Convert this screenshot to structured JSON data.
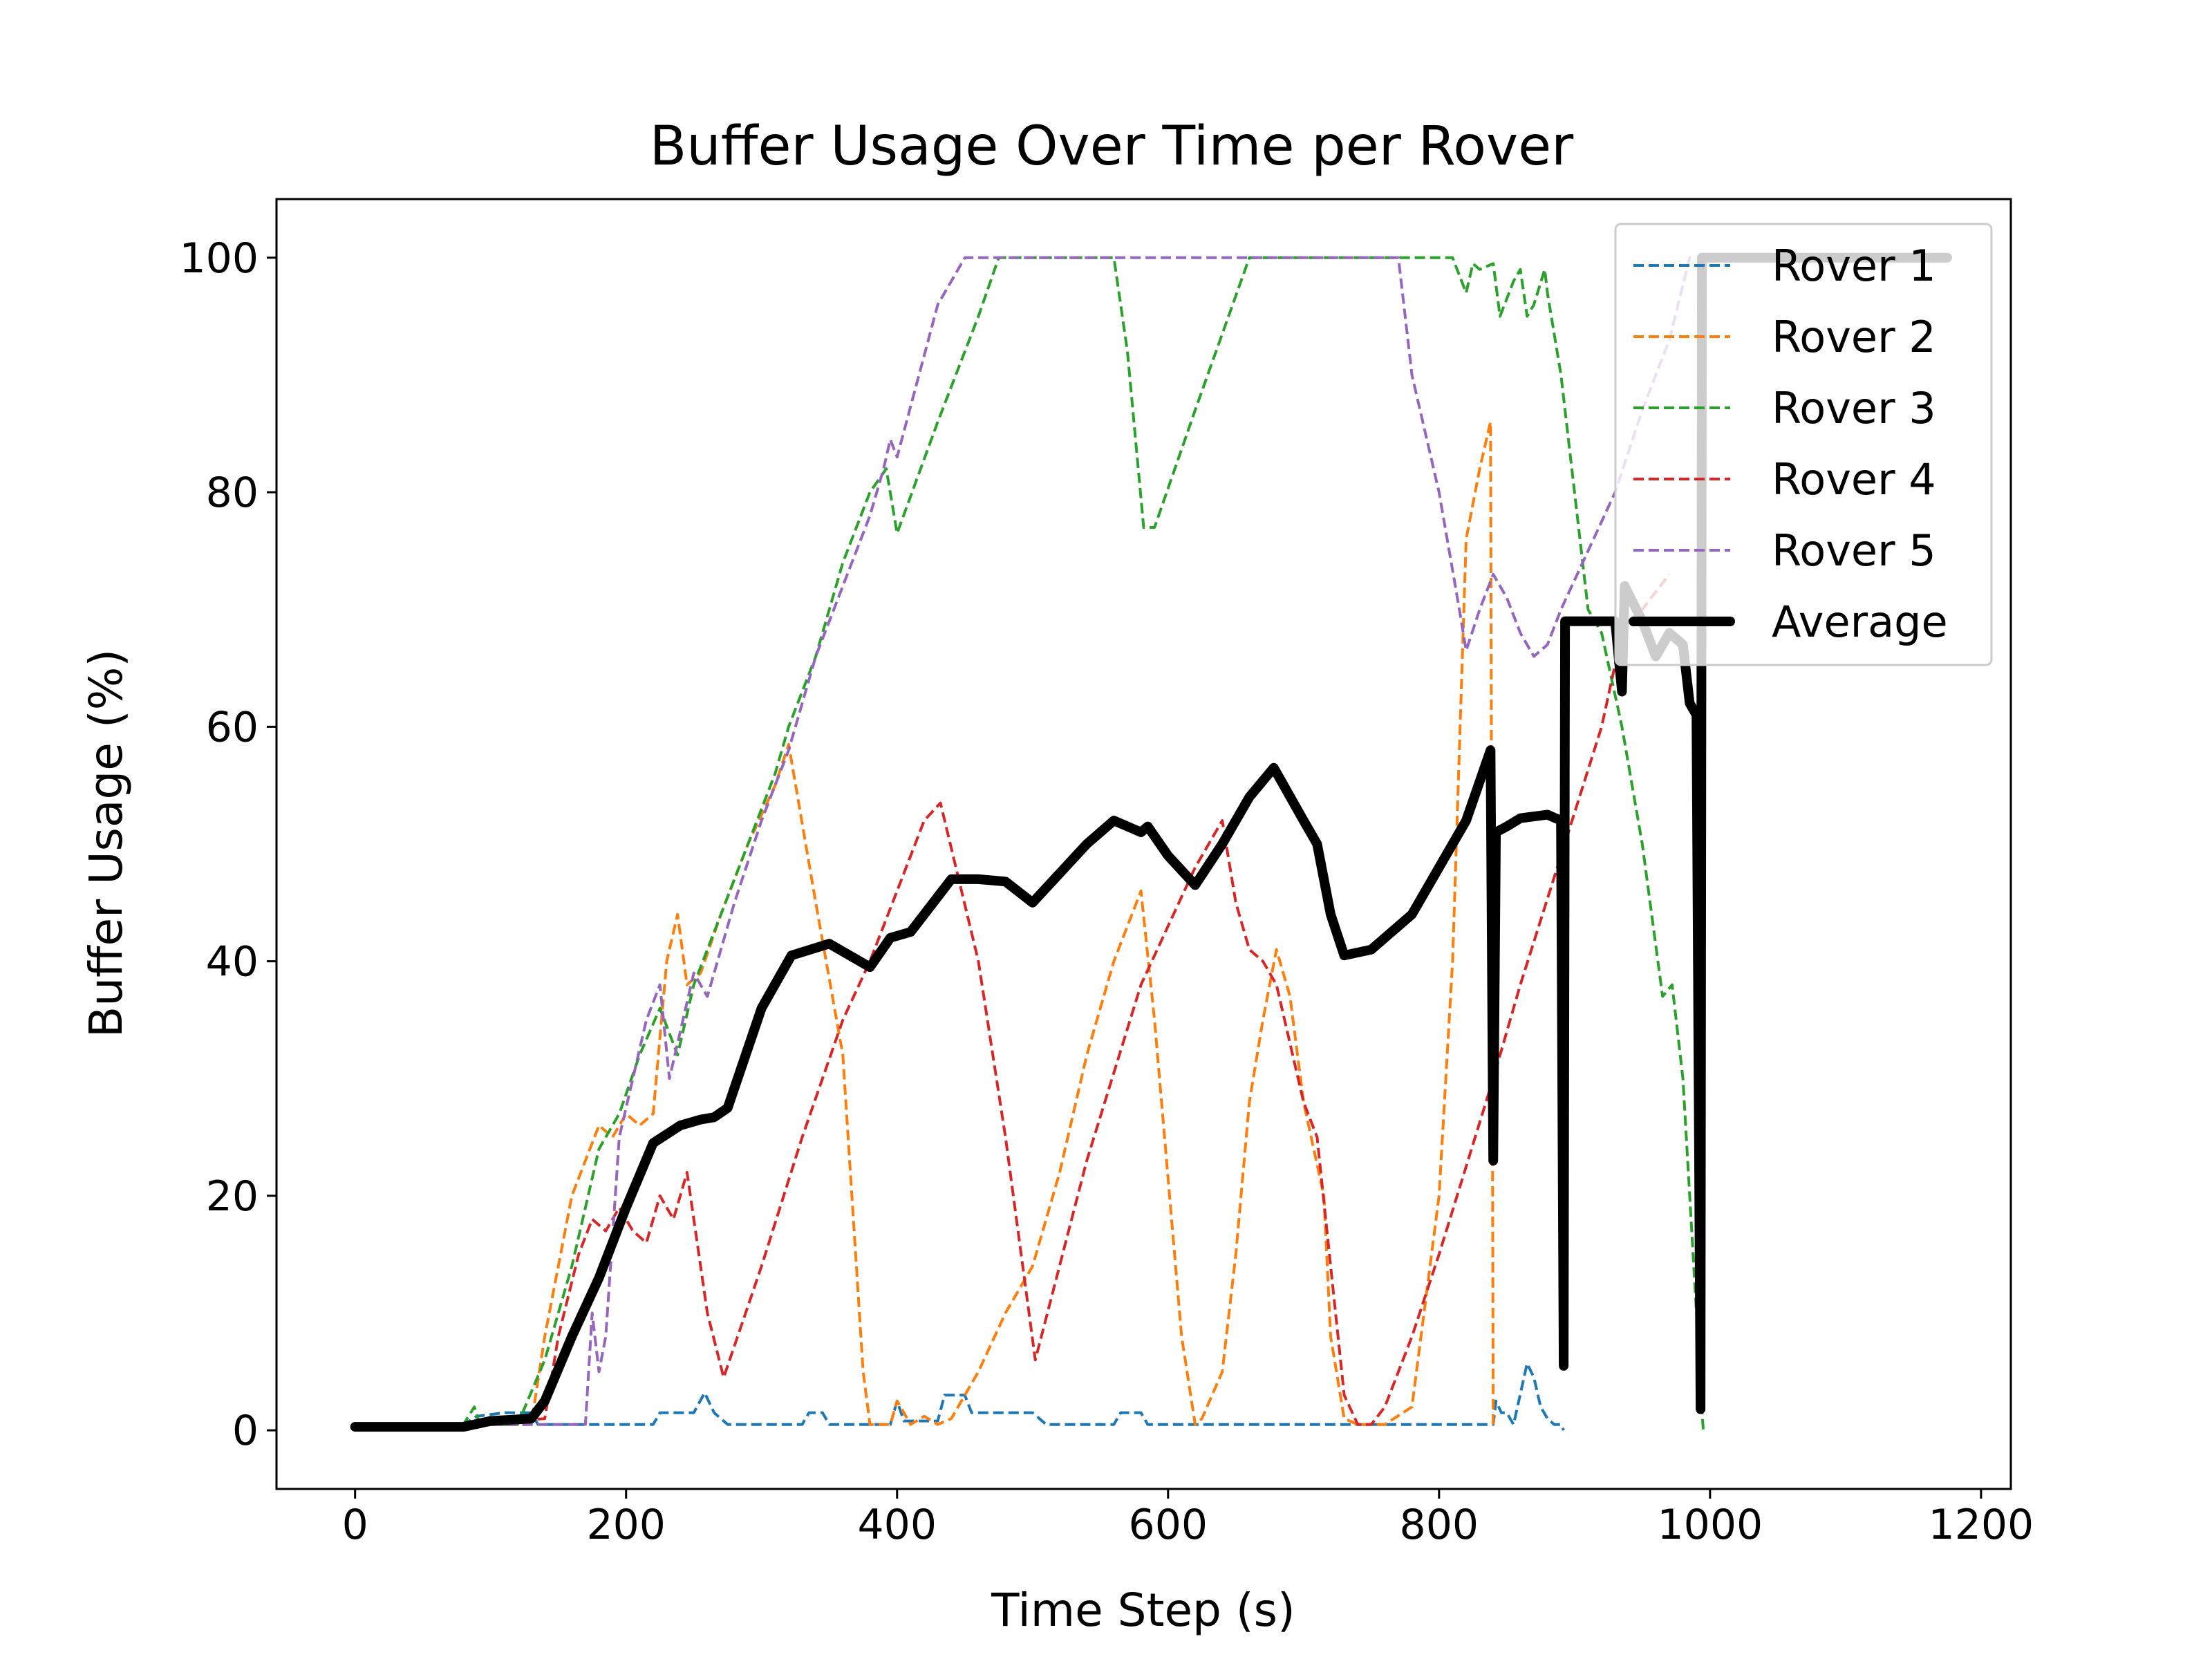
{
  "chart_data": {
    "type": "line",
    "title": "Buffer Usage Over Time per Rover",
    "xlabel": "Time Step (s)",
    "ylabel": "Buffer Usage (%)",
    "xlim": [
      -58,
      1222
    ],
    "ylim": [
      -5,
      105
    ],
    "xticks": [
      0,
      200,
      400,
      600,
      800,
      1000,
      1200
    ],
    "yticks": [
      0,
      20,
      40,
      60,
      80,
      100
    ],
    "grid": false,
    "legend_position": "top-right",
    "series": [
      {
        "name": "Rover 1",
        "color": "#1f77b4",
        "dashed": true,
        "width": 2,
        "points": [
          [
            0,
            0.5
          ],
          [
            80,
            0.5
          ],
          [
            90,
            1.2
          ],
          [
            110,
            1.5
          ],
          [
            130,
            1.5
          ],
          [
            135,
            0.5
          ],
          [
            140,
            0.5
          ],
          [
            220,
            0.5
          ],
          [
            225,
            1.5
          ],
          [
            250,
            1.5
          ],
          [
            258,
            3.2
          ],
          [
            265,
            1.5
          ],
          [
            275,
            0.5
          ],
          [
            330,
            0.5
          ],
          [
            335,
            1.5
          ],
          [
            345,
            1.5
          ],
          [
            350,
            0.5
          ],
          [
            395,
            0.5
          ],
          [
            400,
            2.5
          ],
          [
            405,
            0.8
          ],
          [
            430,
            0.8
          ],
          [
            435,
            3
          ],
          [
            450,
            3
          ],
          [
            455,
            1.5
          ],
          [
            500,
            1.5
          ],
          [
            510,
            0.5
          ],
          [
            560,
            0.5
          ],
          [
            565,
            1.5
          ],
          [
            580,
            1.5
          ],
          [
            585,
            0.5
          ],
          [
            840,
            0.5
          ],
          [
            842,
            2.5
          ],
          [
            846,
            1.5
          ],
          [
            850,
            1.5
          ],
          [
            855,
            0.5
          ],
          [
            865,
            5.7
          ],
          [
            870,
            4.5
          ],
          [
            875,
            2
          ],
          [
            880,
            1
          ],
          [
            885,
            0.5
          ],
          [
            890,
            0.5
          ],
          [
            892,
            0
          ]
        ]
      },
      {
        "name": "Rover 2",
        "color": "#ff7f0e",
        "dashed": true,
        "width": 2,
        "points": [
          [
            0,
            0.5
          ],
          [
            80,
            0.5
          ],
          [
            130,
            0.5
          ],
          [
            140,
            8
          ],
          [
            160,
            20
          ],
          [
            180,
            26
          ],
          [
            190,
            25
          ],
          [
            200,
            27
          ],
          [
            210,
            26
          ],
          [
            220,
            27
          ],
          [
            230,
            40
          ],
          [
            238,
            44
          ],
          [
            245,
            38
          ],
          [
            255,
            39
          ],
          [
            270,
            44
          ],
          [
            290,
            50
          ],
          [
            310,
            55
          ],
          [
            320,
            58.5
          ],
          [
            340,
            45
          ],
          [
            360,
            32
          ],
          [
            375,
            5
          ],
          [
            380,
            0.5
          ],
          [
            395,
            0.5
          ],
          [
            400,
            2.5
          ],
          [
            410,
            0.5
          ],
          [
            420,
            1.2
          ],
          [
            430,
            0.5
          ],
          [
            440,
            1
          ],
          [
            460,
            5
          ],
          [
            480,
            10
          ],
          [
            500,
            14
          ],
          [
            520,
            22
          ],
          [
            540,
            32
          ],
          [
            560,
            40
          ],
          [
            580,
            46
          ],
          [
            590,
            35
          ],
          [
            610,
            8
          ],
          [
            620,
            0.5
          ],
          [
            625,
            1
          ],
          [
            640,
            5
          ],
          [
            650,
            15
          ],
          [
            660,
            28
          ],
          [
            670,
            35
          ],
          [
            680,
            41
          ],
          [
            690,
            37
          ],
          [
            700,
            28
          ],
          [
            715,
            20
          ],
          [
            720,
            8
          ],
          [
            730,
            1
          ],
          [
            740,
            0.5
          ],
          [
            760,
            0.5
          ],
          [
            780,
            2
          ],
          [
            800,
            20
          ],
          [
            810,
            40
          ],
          [
            820,
            76
          ],
          [
            830,
            82
          ],
          [
            838,
            86
          ],
          [
            840,
            0.5
          ]
        ]
      },
      {
        "name": "Rover 3",
        "color": "#2ca02c",
        "dashed": true,
        "width": 2,
        "points": [
          [
            0,
            0.5
          ],
          [
            80,
            0.5
          ],
          [
            88,
            2
          ],
          [
            92,
            0.5
          ],
          [
            120,
            0.5
          ],
          [
            140,
            6
          ],
          [
            160,
            14
          ],
          [
            180,
            24
          ],
          [
            195,
            27
          ],
          [
            210,
            32
          ],
          [
            225,
            36
          ],
          [
            238,
            32
          ],
          [
            250,
            38
          ],
          [
            270,
            44
          ],
          [
            290,
            50
          ],
          [
            310,
            56
          ],
          [
            320,
            60
          ],
          [
            340,
            66
          ],
          [
            360,
            74
          ],
          [
            380,
            80
          ],
          [
            392,
            82
          ],
          [
            400,
            76.5
          ],
          [
            430,
            86
          ],
          [
            460,
            95
          ],
          [
            475,
            100
          ],
          [
            560,
            100
          ],
          [
            570,
            92
          ],
          [
            582,
            77
          ],
          [
            590,
            77
          ],
          [
            620,
            87
          ],
          [
            660,
            100
          ],
          [
            770,
            100
          ],
          [
            810,
            100
          ],
          [
            820,
            97
          ],
          [
            825,
            99.5
          ],
          [
            830,
            99
          ],
          [
            840,
            99.5
          ],
          [
            845,
            95
          ],
          [
            855,
            98
          ],
          [
            860,
            99
          ],
          [
            865,
            95
          ],
          [
            870,
            96
          ],
          [
            878,
            99
          ],
          [
            880,
            97
          ],
          [
            890,
            90
          ],
          [
            900,
            80
          ],
          [
            910,
            70
          ],
          [
            920,
            68
          ],
          [
            935,
            60
          ],
          [
            950,
            50
          ],
          [
            965,
            37
          ],
          [
            972,
            38
          ],
          [
            980,
            30
          ],
          [
            990,
            10
          ],
          [
            995,
            0
          ]
        ]
      },
      {
        "name": "Rover 4",
        "color": "#d62728",
        "dashed": true,
        "width": 2,
        "points": [
          [
            0,
            0.5
          ],
          [
            80,
            0.5
          ],
          [
            140,
            1
          ],
          [
            150,
            8
          ],
          [
            165,
            15
          ],
          [
            175,
            18
          ],
          [
            185,
            17
          ],
          [
            195,
            19
          ],
          [
            205,
            17
          ],
          [
            215,
            16
          ],
          [
            225,
            20
          ],
          [
            235,
            18
          ],
          [
            245,
            22
          ],
          [
            260,
            10
          ],
          [
            272,
            4.5
          ],
          [
            300,
            14
          ],
          [
            330,
            25
          ],
          [
            360,
            35
          ],
          [
            380,
            40
          ],
          [
            400,
            46
          ],
          [
            420,
            52
          ],
          [
            432,
            53.5
          ],
          [
            460,
            40
          ],
          [
            480,
            25
          ],
          [
            502,
            6
          ],
          [
            540,
            23
          ],
          [
            580,
            38
          ],
          [
            620,
            48
          ],
          [
            640,
            52
          ],
          [
            650,
            45
          ],
          [
            660,
            41
          ],
          [
            670,
            40
          ],
          [
            680,
            38
          ],
          [
            690,
            33
          ],
          [
            700,
            28
          ],
          [
            710,
            25
          ],
          [
            720,
            14
          ],
          [
            730,
            3
          ],
          [
            740,
            0.5
          ],
          [
            750,
            0.5
          ],
          [
            760,
            2
          ],
          [
            780,
            8
          ],
          [
            800,
            15
          ],
          [
            840,
            30
          ],
          [
            860,
            38
          ],
          [
            890,
            49
          ],
          [
            920,
            60
          ],
          [
            935,
            68
          ],
          [
            950,
            70
          ],
          [
            970,
            73
          ]
        ]
      },
      {
        "name": "Rover 5",
        "color": "#9467bd",
        "dashed": true,
        "width": 2,
        "points": [
          [
            0,
            0.5
          ],
          [
            80,
            0.5
          ],
          [
            160,
            0.5
          ],
          [
            170,
            0.5
          ],
          [
            175,
            10
          ],
          [
            180,
            5
          ],
          [
            185,
            8
          ],
          [
            195,
            25
          ],
          [
            205,
            30
          ],
          [
            215,
            35
          ],
          [
            225,
            38
          ],
          [
            232,
            30
          ],
          [
            250,
            39
          ],
          [
            260,
            37
          ],
          [
            280,
            45
          ],
          [
            300,
            52
          ],
          [
            320,
            58
          ],
          [
            340,
            66
          ],
          [
            360,
            72
          ],
          [
            380,
            78
          ],
          [
            390,
            82
          ],
          [
            395,
            84.5
          ],
          [
            400,
            83
          ],
          [
            430,
            96
          ],
          [
            450,
            100
          ],
          [
            770,
            100
          ],
          [
            780,
            90
          ],
          [
            800,
            80
          ],
          [
            815,
            70
          ],
          [
            820,
            66.5
          ],
          [
            830,
            70
          ],
          [
            840,
            73
          ],
          [
            850,
            71
          ],
          [
            860,
            68
          ],
          [
            870,
            66
          ],
          [
            880,
            67
          ],
          [
            890,
            70
          ],
          [
            910,
            75
          ],
          [
            930,
            80
          ],
          [
            950,
            87
          ],
          [
            970,
            93
          ],
          [
            985,
            100
          ],
          [
            990,
            100
          ]
        ]
      },
      {
        "name": "Average",
        "color": "#000000",
        "dashed": false,
        "width": 7,
        "points": [
          [
            0,
            0.3
          ],
          [
            80,
            0.3
          ],
          [
            100,
            0.8
          ],
          [
            130,
            1
          ],
          [
            140,
            2.5
          ],
          [
            160,
            8
          ],
          [
            180,
            13
          ],
          [
            200,
            19
          ],
          [
            220,
            24.5
          ],
          [
            240,
            26
          ],
          [
            255,
            26.5
          ],
          [
            265,
            26.7
          ],
          [
            275,
            27.5
          ],
          [
            300,
            36
          ],
          [
            322,
            40.5
          ],
          [
            350,
            41.5
          ],
          [
            380,
            39.5
          ],
          [
            395,
            42
          ],
          [
            410,
            42.5
          ],
          [
            420,
            44
          ],
          [
            430,
            45.5
          ],
          [
            440,
            47
          ],
          [
            460,
            47
          ],
          [
            480,
            46.8
          ],
          [
            500,
            45
          ],
          [
            540,
            50
          ],
          [
            560,
            52
          ],
          [
            580,
            51
          ],
          [
            585,
            51.5
          ],
          [
            600,
            49
          ],
          [
            620,
            46.5
          ],
          [
            640,
            50
          ],
          [
            660,
            54
          ],
          [
            678,
            56.5
          ],
          [
            700,
            52
          ],
          [
            710,
            50
          ],
          [
            720,
            44
          ],
          [
            730,
            40.5
          ],
          [
            750,
            41
          ],
          [
            760,
            42
          ],
          [
            780,
            44
          ],
          [
            800,
            48
          ],
          [
            820,
            52
          ],
          [
            838,
            58
          ],
          [
            840,
            23
          ],
          [
            842,
            51
          ],
          [
            850,
            51.5
          ],
          [
            860,
            52.2
          ],
          [
            880,
            52.5
          ],
          [
            890,
            52
          ],
          [
            892,
            5.5
          ],
          [
            893,
            69
          ],
          [
            930,
            69
          ],
          [
            935,
            63
          ],
          [
            937,
            72
          ],
          [
            950,
            69
          ],
          [
            960,
            66
          ],
          [
            970,
            68
          ],
          [
            980,
            67
          ],
          [
            985,
            62
          ],
          [
            990,
            61
          ],
          [
            993,
            1.8
          ],
          [
            994,
            100
          ],
          [
            1175,
            100
          ]
        ]
      }
    ]
  }
}
